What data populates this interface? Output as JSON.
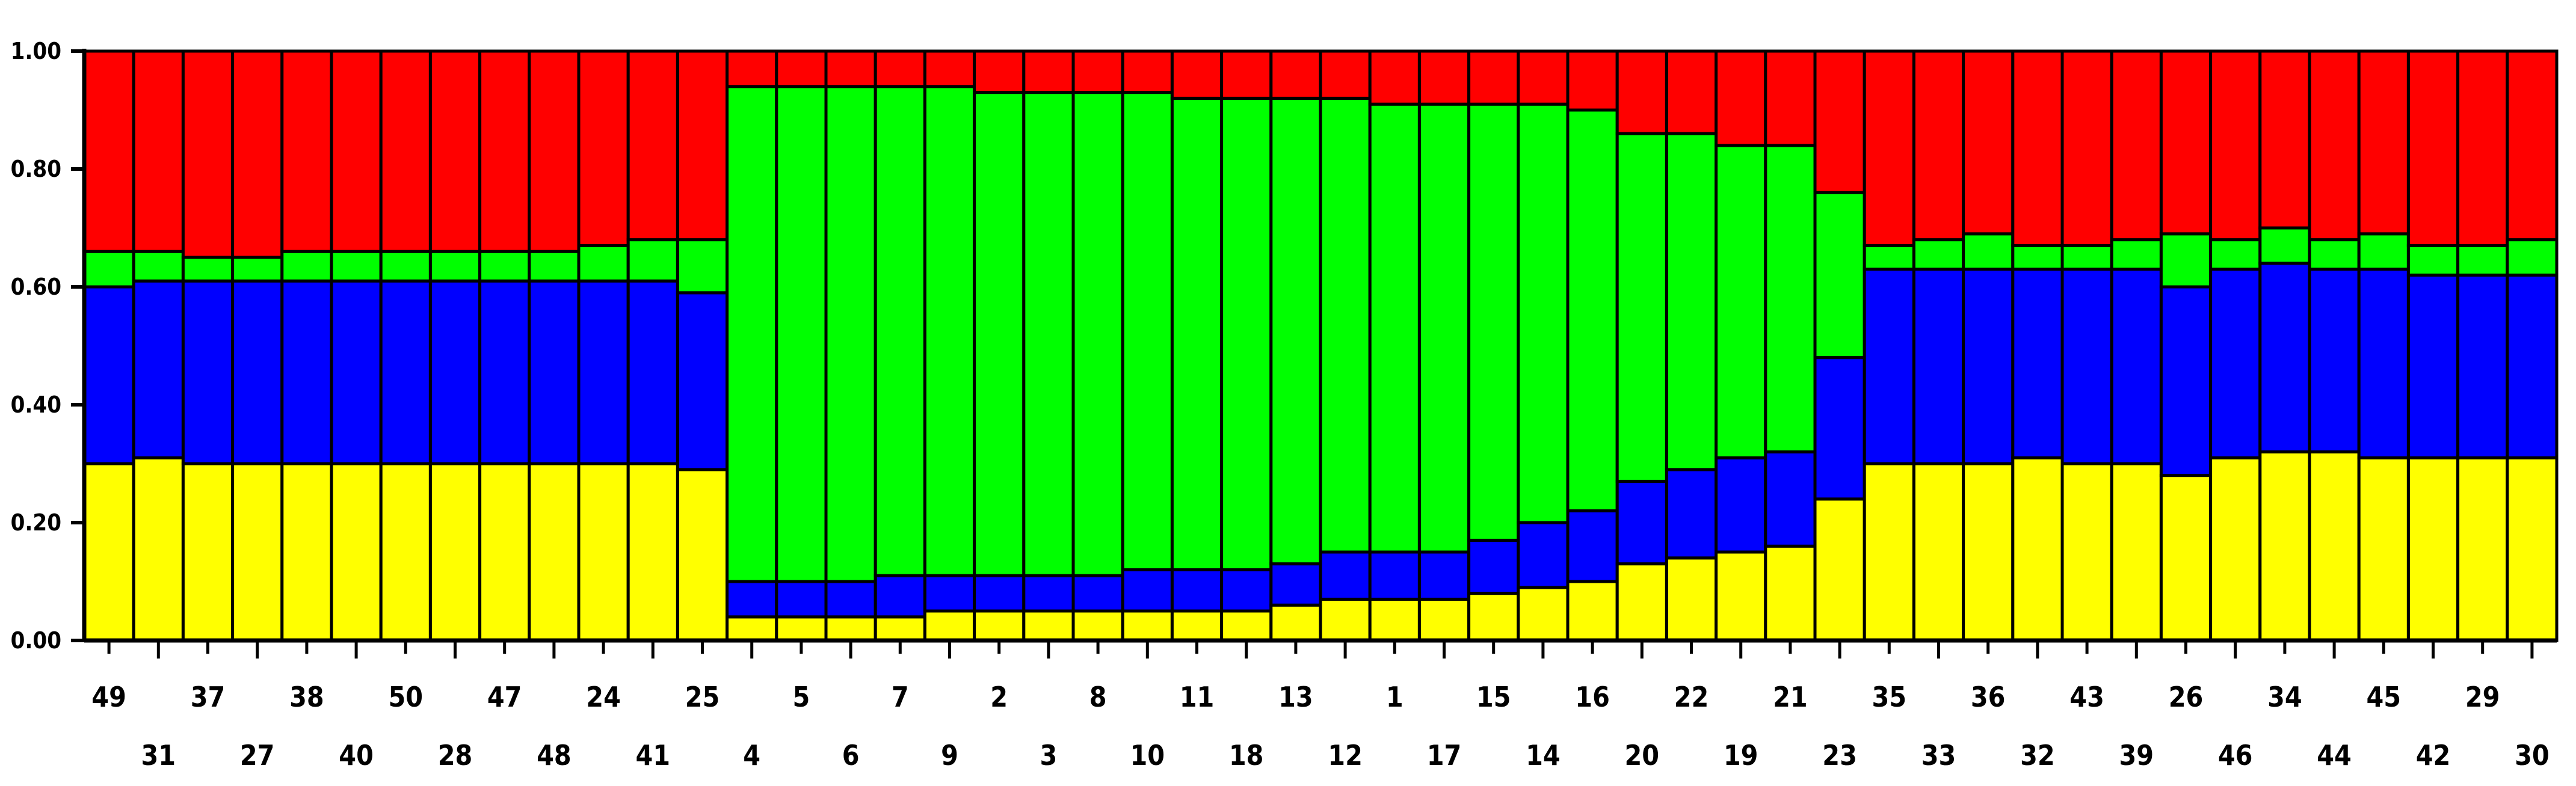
{
  "chart_data": {
    "type": "bar",
    "stacked": true,
    "ylim": [
      0,
      1
    ],
    "yticks": [
      "0.00",
      "0.20",
      "0.40",
      "0.60",
      "0.80",
      "1.00"
    ],
    "grid": false,
    "colors": [
      "#ffff00",
      "#0000ff",
      "#00ff00",
      "#ff0000"
    ],
    "categories": [
      "49",
      "31",
      "37",
      "27",
      "38",
      "40",
      "50",
      "28",
      "47",
      "48",
      "24",
      "41",
      "25",
      "4",
      "5",
      "6",
      "7",
      "9",
      "2",
      "3",
      "8",
      "10",
      "11",
      "18",
      "13",
      "12",
      "1",
      "17",
      "15",
      "14",
      "16",
      "20",
      "22",
      "19",
      "21",
      "23",
      "35",
      "33",
      "36",
      "32",
      "43",
      "39",
      "26",
      "46",
      "34",
      "44",
      "45",
      "42",
      "29",
      "30"
    ],
    "series": [
      {
        "color": "yellow",
        "values": [
          0.3,
          0.31,
          0.3,
          0.3,
          0.3,
          0.3,
          0.3,
          0.3,
          0.3,
          0.3,
          0.3,
          0.3,
          0.29,
          0.04,
          0.04,
          0.04,
          0.04,
          0.05,
          0.05,
          0.05,
          0.05,
          0.05,
          0.05,
          0.05,
          0.06,
          0.07,
          0.07,
          0.07,
          0.08,
          0.09,
          0.1,
          0.13,
          0.14,
          0.15,
          0.16,
          0.24,
          0.3,
          0.3,
          0.3,
          0.31,
          0.3,
          0.3,
          0.28,
          0.31,
          0.32,
          0.32,
          0.31,
          0.31,
          0.31,
          0.31
        ]
      },
      {
        "color": "blue",
        "values": [
          0.3,
          0.3,
          0.31,
          0.31,
          0.31,
          0.31,
          0.31,
          0.31,
          0.31,
          0.31,
          0.31,
          0.31,
          0.3,
          0.06,
          0.06,
          0.06,
          0.07,
          0.06,
          0.06,
          0.06,
          0.06,
          0.07,
          0.07,
          0.07,
          0.07,
          0.08,
          0.08,
          0.08,
          0.09,
          0.11,
          0.12,
          0.14,
          0.15,
          0.16,
          0.16,
          0.24,
          0.33,
          0.33,
          0.33,
          0.32,
          0.33,
          0.33,
          0.32,
          0.32,
          0.32,
          0.31,
          0.32,
          0.31,
          0.31,
          0.31
        ]
      },
      {
        "color": "green",
        "values": [
          0.06,
          0.05,
          0.04,
          0.04,
          0.05,
          0.05,
          0.05,
          0.05,
          0.05,
          0.05,
          0.06,
          0.07,
          0.09,
          0.84,
          0.84,
          0.84,
          0.83,
          0.83,
          0.82,
          0.82,
          0.82,
          0.81,
          0.8,
          0.8,
          0.79,
          0.77,
          0.76,
          0.76,
          0.74,
          0.71,
          0.68,
          0.59,
          0.57,
          0.53,
          0.52,
          0.28,
          0.04,
          0.05,
          0.06,
          0.04,
          0.04,
          0.05,
          0.09,
          0.05,
          0.06,
          0.05,
          0.06,
          0.05,
          0.05,
          0.06
        ]
      },
      {
        "color": "red",
        "values": [
          0.34,
          0.34,
          0.35,
          0.35,
          0.34,
          0.34,
          0.34,
          0.34,
          0.34,
          0.34,
          0.33,
          0.32,
          0.32,
          0.06,
          0.06,
          0.06,
          0.06,
          0.06,
          0.07,
          0.07,
          0.07,
          0.07,
          0.08,
          0.08,
          0.08,
          0.08,
          0.09,
          0.09,
          0.09,
          0.09,
          0.1,
          0.14,
          0.14,
          0.16,
          0.16,
          0.24,
          0.33,
          0.32,
          0.31,
          0.33,
          0.33,
          0.32,
          0.31,
          0.32,
          0.3,
          0.32,
          0.31,
          0.33,
          0.33,
          0.32
        ]
      }
    ]
  }
}
